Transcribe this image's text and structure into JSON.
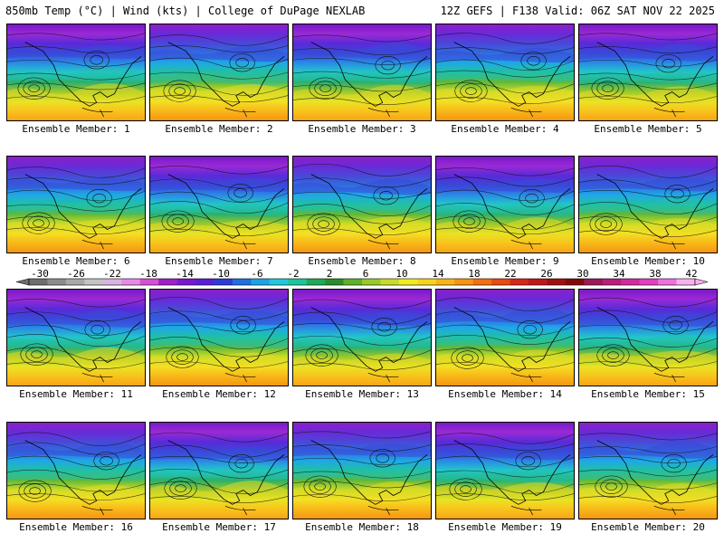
{
  "header": {
    "title_left": "850mb Temp (°C) | Wind (kts) | College of DuPage NEXLAB",
    "title_right": "12Z GEFS | F138 Valid: 06Z SAT NOV 22 2025"
  },
  "members": [
    {
      "label": "Ensemble Member: 1"
    },
    {
      "label": "Ensemble Member: 2"
    },
    {
      "label": "Ensemble Member: 3"
    },
    {
      "label": "Ensemble Member: 4"
    },
    {
      "label": "Ensemble Member: 5"
    },
    {
      "label": "Ensemble Member: 6"
    },
    {
      "label": "Ensemble Member: 7"
    },
    {
      "label": "Ensemble Member: 8"
    },
    {
      "label": "Ensemble Member: 9"
    },
    {
      "label": "Ensemble Member: 10"
    },
    {
      "label": "Ensemble Member: 11"
    },
    {
      "label": "Ensemble Member: 12"
    },
    {
      "label": "Ensemble Member: 13"
    },
    {
      "label": "Ensemble Member: 14"
    },
    {
      "label": "Ensemble Member: 15"
    },
    {
      "label": "Ensemble Member: 16"
    },
    {
      "label": "Ensemble Member: 17"
    },
    {
      "label": "Ensemble Member: 18"
    },
    {
      "label": "Ensemble Member: 19"
    },
    {
      "label": "Ensemble Member: 20"
    }
  ],
  "colorbar": {
    "ticks": [
      "-30",
      "-26",
      "-22",
      "-18",
      "-14",
      "-10",
      "-6",
      "-2",
      "2",
      "6",
      "10",
      "14",
      "18",
      "22",
      "26",
      "30",
      "34",
      "38",
      "42"
    ],
    "colors": [
      "#6e6e6e",
      "#8c8c8c",
      "#a8a8a8",
      "#c4c4c4",
      "#d8b4e2",
      "#e88ae8",
      "#d64fd6",
      "#a020c8",
      "#7a18d0",
      "#5a1ed8",
      "#2e3ad6",
      "#1f6fe0",
      "#1fa2e8",
      "#21c8dc",
      "#1ec4a0",
      "#21a858",
      "#2c8c2c",
      "#5fb02c",
      "#98c82c",
      "#c8dc28",
      "#f0ec24",
      "#f8d41c",
      "#f8b418",
      "#f89414",
      "#f27010",
      "#e84a10",
      "#d82818",
      "#c01818",
      "#a01010",
      "#800a0a",
      "#9a1a5a",
      "#b8207e",
      "#d02aa0",
      "#e040c0",
      "#f070e0",
      "#f8b0f0"
    ]
  }
}
